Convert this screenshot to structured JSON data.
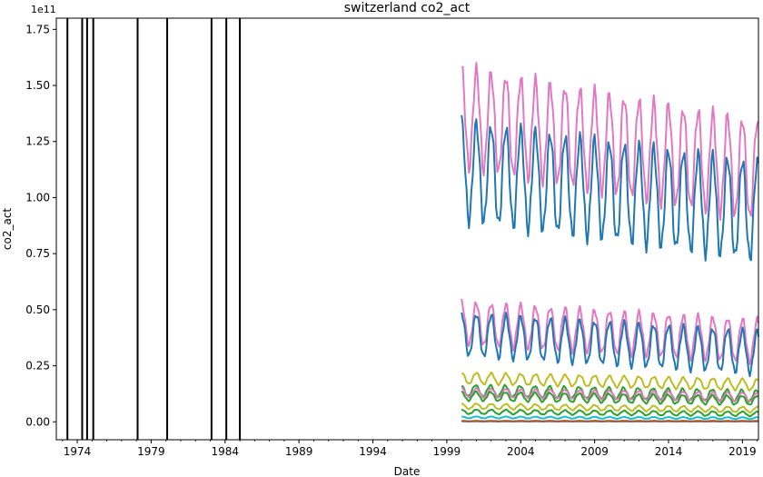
{
  "chart_data": {
    "type": "line",
    "title": "switzerland co2_act",
    "xlabel": "Date",
    "ylabel": "co2_act",
    "y_offset_label": "1e11",
    "y_scale": 100000000000,
    "xlim": [
      "1972-08-01",
      "2020-02-01"
    ],
    "ylim": [
      -0.08,
      1.8
    ],
    "x_ticks": [
      "1974",
      "1979",
      "1984",
      "1989",
      "1994",
      "1999",
      "2004",
      "2009",
      "2014",
      "2019"
    ],
    "y_ticks": [
      "0.00",
      "0.25",
      "0.50",
      "0.75",
      "1.00",
      "1.25",
      "1.50",
      "1.75"
    ],
    "grid": false,
    "legend": "none",
    "vertical_lines": [
      "1973-05-01",
      "1974-05-01",
      "1974-09-01",
      "1975-02-01",
      "1978-02-01",
      "1980-02-01",
      "1983-02-01",
      "1984-02-01",
      "1985-01-01"
    ],
    "vertical_line_color": "#000000",
    "series_start": "2000-01-01",
    "series_end": "2020-02-01",
    "series_step": "month",
    "series": [
      {
        "color": "#e377c2",
        "mean": 1.36,
        "amplitude": 0.22,
        "trend": -0.012,
        "phase": 0.0
      },
      {
        "color": "#1f77b4",
        "mean": 1.12,
        "amplitude": 0.22,
        "trend": -0.009,
        "phase": 0.0
      },
      {
        "color": "#e377c2",
        "mean": 0.44,
        "amplitude": 0.095,
        "trend": -0.004,
        "phase": 0.0
      },
      {
        "color": "#1f77b4",
        "mean": 0.39,
        "amplitude": 0.095,
        "trend": -0.004,
        "phase": 0.0
      },
      {
        "color": "#bcbd22",
        "mean": 0.195,
        "amplitude": 0.025,
        "trend": -0.0015,
        "phase": 0.0
      },
      {
        "color": "#2ca02c",
        "mean": 0.14,
        "amplitude": 0.025,
        "trend": -0.0012,
        "phase": 0.3
      },
      {
        "color": "#e377c2",
        "mean": 0.13,
        "amplitude": 0.02,
        "trend": -0.001,
        "phase": 0.0
      },
      {
        "color": "#2ca02c",
        "mean": 0.115,
        "amplitude": 0.02,
        "trend": -0.001,
        "phase": 0.2
      },
      {
        "color": "#bcbd22",
        "mean": 0.07,
        "amplitude": 0.012,
        "trend": -0.0008,
        "phase": 0.0
      },
      {
        "color": "#2ca02c",
        "mean": 0.045,
        "amplitude": 0.01,
        "trend": -0.0005,
        "phase": 0.0
      },
      {
        "color": "#17becf",
        "mean": 0.02,
        "amplitude": 0.004,
        "trend": -0.0002,
        "phase": 0.0
      },
      {
        "color": "#ff7f0e",
        "mean": 0.004,
        "amplitude": 0.001,
        "trend": 0,
        "phase": 0.0
      },
      {
        "color": "#8c564b",
        "mean": 0.002,
        "amplitude": 0.0005,
        "trend": 0,
        "phase": 0.0
      }
    ]
  }
}
